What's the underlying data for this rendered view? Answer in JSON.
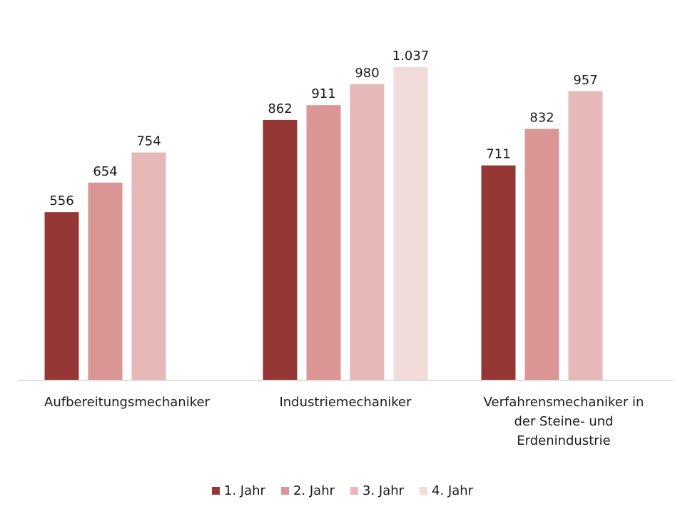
{
  "chart_data": {
    "type": "bar",
    "title": "",
    "xlabel": "",
    "ylabel": "",
    "ylim": [
      0,
      1037
    ],
    "grid": false,
    "legend_position": "bottom",
    "categories": [
      [
        "Aufbereitungsmechaniker"
      ],
      [
        "Industriemechaniker"
      ],
      [
        "Verfahrensmechaniker in",
        "der Steine- und",
        "Erdenindustrie"
      ]
    ],
    "series": [
      {
        "name": "1. Jahr",
        "color": "#953735",
        "values": [
          556,
          862,
          711
        ],
        "labels": [
          "556",
          "862",
          "711"
        ]
      },
      {
        "name": "2. Jahr",
        "color": "#d99694",
        "values": [
          654,
          911,
          832
        ],
        "labels": [
          "654",
          "911",
          "832"
        ]
      },
      {
        "name": "3. Jahr",
        "color": "#e6b9b8",
        "values": [
          754,
          980,
          957
        ],
        "labels": [
          "754",
          "980",
          "957"
        ]
      },
      {
        "name": "4. Jahr",
        "color": "#f2dcdb",
        "values": [
          null,
          1037,
          null
        ],
        "labels": [
          null,
          "1.037",
          null
        ]
      }
    ]
  }
}
